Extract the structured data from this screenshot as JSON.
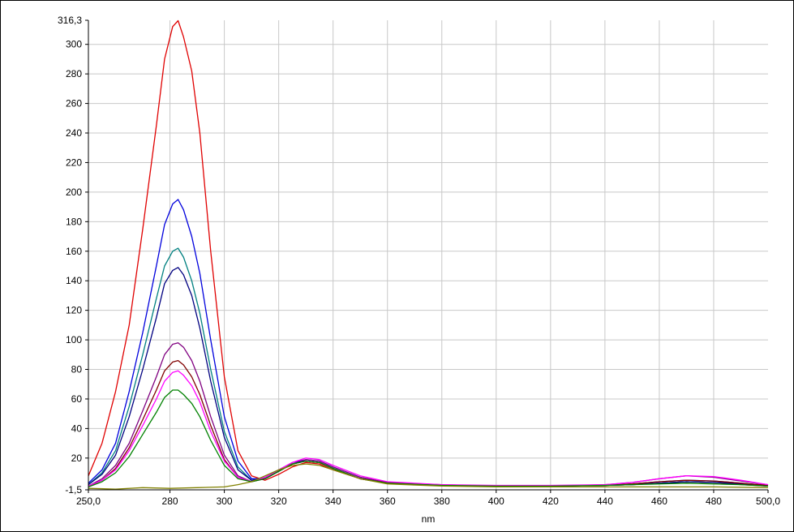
{
  "chart_data": {
    "type": "line",
    "title": "",
    "xlabel": "nm",
    "ylabel": "",
    "xlim": [
      250.0,
      500.0
    ],
    "ylim": [
      -1.5,
      316.3
    ],
    "grid": true,
    "legend": "none",
    "x_ticks": [
      {
        "value": 250,
        "label": "250,0"
      },
      {
        "value": 280,
        "label": "280"
      },
      {
        "value": 300,
        "label": "300"
      },
      {
        "value": 320,
        "label": "320"
      },
      {
        "value": 340,
        "label": "340"
      },
      {
        "value": 360,
        "label": "360"
      },
      {
        "value": 380,
        "label": "380"
      },
      {
        "value": 400,
        "label": "400"
      },
      {
        "value": 420,
        "label": "420"
      },
      {
        "value": 440,
        "label": "440"
      },
      {
        "value": 460,
        "label": "460"
      },
      {
        "value": 480,
        "label": "480"
      },
      {
        "value": 500,
        "label": "500,0"
      }
    ],
    "y_ticks": [
      {
        "value": -1.5,
        "label": "-1,5"
      },
      {
        "value": 20,
        "label": "20"
      },
      {
        "value": 40,
        "label": "40"
      },
      {
        "value": 60,
        "label": "60"
      },
      {
        "value": 80,
        "label": "80"
      },
      {
        "value": 100,
        "label": "100"
      },
      {
        "value": 120,
        "label": "120"
      },
      {
        "value": 140,
        "label": "140"
      },
      {
        "value": 160,
        "label": "160"
      },
      {
        "value": 180,
        "label": "180"
      },
      {
        "value": 200,
        "label": "200"
      },
      {
        "value": 220,
        "label": "220"
      },
      {
        "value": 240,
        "label": "240"
      },
      {
        "value": 260,
        "label": "260"
      },
      {
        "value": 280,
        "label": "280"
      },
      {
        "value": 300,
        "label": "300"
      },
      {
        "value": 316.3,
        "label": "316,3"
      }
    ],
    "series": [
      {
        "color": "#e00000",
        "x": [
          250,
          255,
          260,
          265,
          270,
          275,
          278,
          281,
          283,
          285,
          288,
          291,
          295,
          300,
          305,
          310,
          315,
          320,
          325,
          330,
          335,
          340,
          350,
          360,
          380,
          400,
          420,
          440,
          450,
          460,
          470,
          480,
          490,
          500
        ],
        "y": [
          8,
          30,
          65,
          110,
          175,
          245,
          290,
          312,
          316,
          305,
          282,
          240,
          160,
          75,
          25,
          8,
          5,
          9,
          14,
          17,
          16,
          12,
          6,
          3,
          1.5,
          1,
          1,
          1.5,
          2,
          3,
          4,
          3.5,
          2,
          1
        ]
      },
      {
        "color": "#0000dd",
        "x": [
          250,
          255,
          260,
          265,
          270,
          275,
          278,
          281,
          283,
          285,
          288,
          291,
          295,
          300,
          305,
          310,
          315,
          320,
          325,
          330,
          335,
          340,
          350,
          360,
          380,
          400,
          420,
          440,
          450,
          460,
          470,
          480,
          490,
          500
        ],
        "y": [
          3,
          12,
          30,
          65,
          105,
          150,
          178,
          192,
          195,
          188,
          170,
          145,
          100,
          48,
          18,
          6,
          6,
          11,
          16,
          19,
          18,
          14,
          7,
          3,
          1.5,
          1,
          1,
          1.5,
          2.5,
          4,
          5,
          4.5,
          3,
          1.5
        ]
      },
      {
        "color": "#008080",
        "x": [
          250,
          255,
          260,
          265,
          270,
          275,
          278,
          281,
          283,
          285,
          288,
          291,
          295,
          300,
          305,
          310,
          315,
          320,
          325,
          330,
          335,
          340,
          350,
          360,
          380,
          400,
          420,
          440,
          450,
          460,
          470,
          480,
          490,
          500
        ],
        "y": [
          2,
          10,
          25,
          55,
          90,
          128,
          150,
          160,
          162,
          156,
          140,
          118,
          80,
          38,
          14,
          5,
          6,
          11,
          16,
          18,
          17,
          13,
          6,
          3,
          1.5,
          1,
          1,
          1.5,
          2,
          3,
          4,
          3.5,
          2.5,
          1
        ]
      },
      {
        "color": "#000080",
        "x": [
          250,
          255,
          260,
          265,
          270,
          275,
          278,
          281,
          283,
          285,
          288,
          291,
          295,
          300,
          305,
          310,
          315,
          320,
          325,
          330,
          335,
          340,
          350,
          360,
          380,
          400,
          420,
          440,
          450,
          460,
          470,
          480,
          490,
          500
        ],
        "y": [
          2,
          9,
          22,
          48,
          80,
          115,
          138,
          147,
          149,
          144,
          130,
          108,
          72,
          34,
          12,
          5,
          6,
          11,
          16,
          18,
          17,
          13,
          6,
          3,
          1.5,
          1,
          1,
          1.5,
          2,
          3,
          4,
          3.5,
          2.5,
          1
        ]
      },
      {
        "color": "#800080",
        "x": [
          250,
          255,
          260,
          265,
          270,
          275,
          278,
          281,
          283,
          285,
          288,
          291,
          295,
          300,
          305,
          310,
          315,
          320,
          325,
          330,
          335,
          340,
          350,
          360,
          380,
          400,
          420,
          440,
          450,
          460,
          470,
          480,
          490,
          500
        ],
        "y": [
          1,
          6,
          15,
          30,
          52,
          75,
          90,
          97,
          98,
          95,
          86,
          72,
          48,
          22,
          8,
          4,
          7,
          12,
          17,
          19,
          18,
          14,
          7,
          3.5,
          2,
          1,
          1,
          2,
          3.5,
          6,
          8,
          7,
          4.5,
          2
        ]
      },
      {
        "color": "#800000",
        "x": [
          250,
          255,
          260,
          265,
          270,
          275,
          278,
          281,
          283,
          285,
          288,
          291,
          295,
          300,
          305,
          310,
          315,
          320,
          325,
          330,
          335,
          340,
          350,
          360,
          380,
          400,
          420,
          440,
          450,
          460,
          470,
          480,
          490,
          500
        ],
        "y": [
          1,
          5,
          13,
          27,
          46,
          66,
          79,
          85,
          86,
          83,
          75,
          63,
          42,
          19,
          7,
          4,
          6,
          11,
          16,
          18,
          17,
          13,
          6,
          3,
          1.5,
          1,
          1,
          1.5,
          2.5,
          4,
          5,
          4.5,
          3,
          1.5
        ]
      },
      {
        "color": "#ff00ff",
        "x": [
          250,
          255,
          260,
          265,
          270,
          275,
          278,
          281,
          283,
          285,
          288,
          291,
          295,
          300,
          305,
          310,
          315,
          320,
          325,
          330,
          335,
          340,
          350,
          360,
          380,
          400,
          420,
          440,
          450,
          460,
          470,
          480,
          490,
          500
        ],
        "y": [
          1,
          5,
          12,
          25,
          42,
          60,
          72,
          78,
          79,
          76,
          69,
          58,
          38,
          18,
          7,
          4,
          7,
          12,
          17,
          20,
          19,
          15,
          8,
          4,
          2,
          1.5,
          1.5,
          2,
          3.5,
          6,
          8,
          7.5,
          5,
          2
        ]
      },
      {
        "color": "#008000",
        "x": [
          250,
          255,
          260,
          265,
          270,
          275,
          278,
          281,
          283,
          285,
          288,
          291,
          295,
          300,
          305,
          310,
          315,
          320,
          325,
          330,
          335,
          340,
          350,
          360,
          380,
          400,
          420,
          440,
          450,
          460,
          470,
          480,
          490,
          500
        ],
        "y": [
          0.5,
          4,
          10,
          21,
          36,
          51,
          61,
          66,
          66,
          63,
          57,
          48,
          32,
          15,
          6,
          4,
          6,
          11,
          16,
          18,
          17,
          13,
          6,
          3,
          1.5,
          1,
          1,
          1.5,
          2,
          2.5,
          3,
          2.5,
          2,
          1
        ]
      },
      {
        "color": "#808000",
        "x": [
          250,
          260,
          270,
          280,
          290,
          300,
          305,
          310,
          315,
          320,
          325,
          330,
          335,
          340,
          350,
          360,
          380,
          400,
          420,
          440,
          460,
          480,
          500
        ],
        "y": [
          -0.5,
          -1,
          0,
          -0.5,
          0,
          0.5,
          2,
          4,
          8,
          12,
          15,
          16,
          15,
          12,
          6,
          2.5,
          1,
          0.5,
          0.5,
          0.5,
          0.5,
          0.5,
          0
        ]
      }
    ]
  }
}
